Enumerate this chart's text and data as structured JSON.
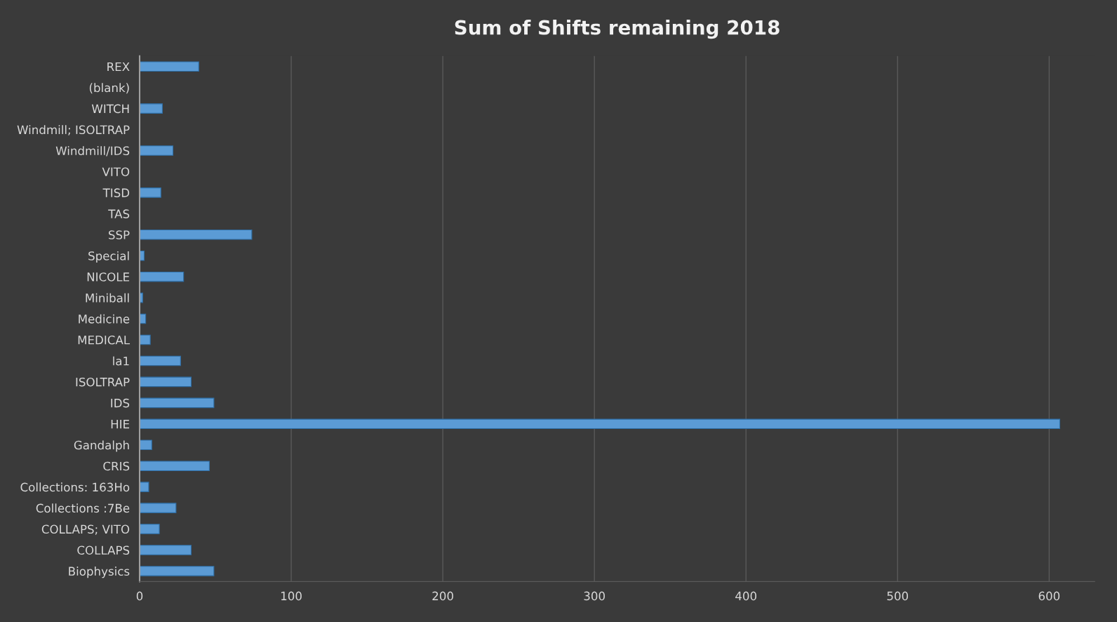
{
  "chart_data": {
    "type": "bar",
    "orientation": "horizontal",
    "title": "Sum of Shifts remaining 2018",
    "categories": [
      "REX",
      "(blank)",
      "WITCH",
      "Windmill; ISOLTRAP",
      "Windmill/IDS",
      "VITO",
      "TISD",
      "TAS",
      "SSP",
      "Special",
      "NICOLE",
      "Miniball",
      "Medicine",
      "MEDICAL",
      "la1",
      "ISOLTRAP",
      "IDS",
      "HIE",
      "Gandalph",
      "CRIS",
      "Collections: 163Ho",
      "Collections :7Be",
      "COLLAPS; VITO",
      "COLLAPS",
      "Biophysics"
    ],
    "values": [
      39,
      null,
      15,
      null,
      22,
      null,
      14,
      null,
      74,
      3,
      29,
      2,
      4,
      7,
      27,
      34,
      49,
      607,
      8,
      46,
      6,
      24,
      13,
      34,
      49
    ],
    "color": "#5b9bd5",
    "xlim": [
      0,
      630
    ],
    "xticks": [
      0,
      100,
      200,
      300,
      400,
      500,
      600
    ],
    "grid": "x"
  }
}
